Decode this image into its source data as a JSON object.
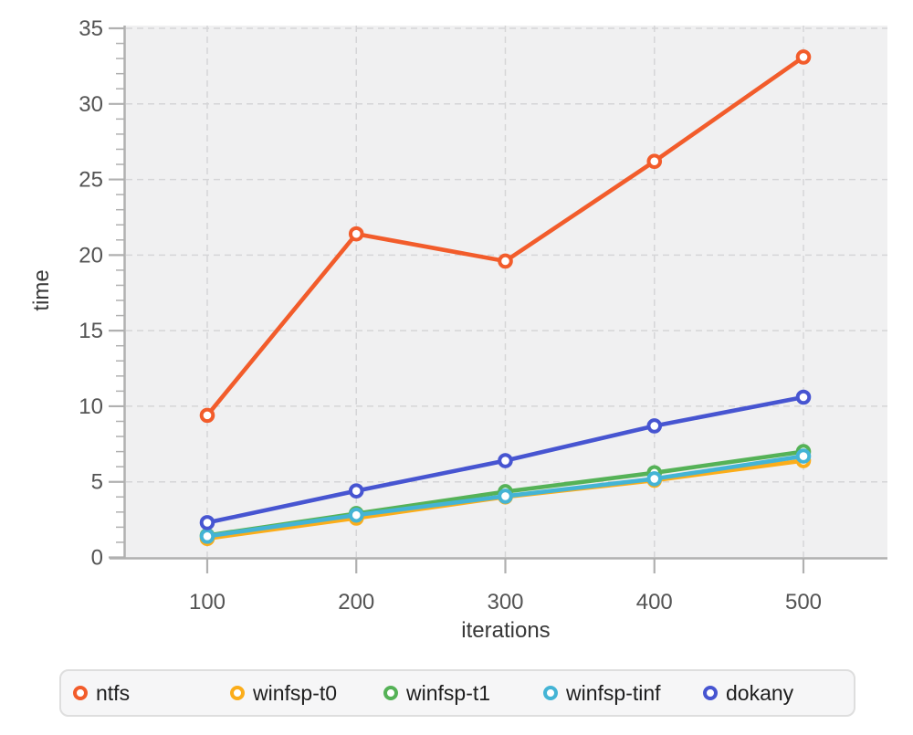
{
  "chart_data": {
    "type": "line",
    "title": "",
    "xlabel": "iterations",
    "ylabel": "time",
    "x": [
      100,
      200,
      300,
      400,
      500
    ],
    "xticks": [
      100,
      200,
      300,
      400,
      500
    ],
    "yticks_major": [
      0,
      5,
      10,
      15,
      20,
      25,
      30,
      35
    ],
    "ylim": [
      0,
      35
    ],
    "grid": true,
    "legend_position": "bottom",
    "series": [
      {
        "name": "ntfs",
        "color": "#f25c2b",
        "values": [
          9.4,
          21.4,
          19.6,
          26.2,
          33.1
        ]
      },
      {
        "name": "winfsp-t0",
        "color": "#fbad1a",
        "values": [
          1.25,
          2.6,
          4.0,
          5.1,
          6.4
        ]
      },
      {
        "name": "winfsp-t1",
        "color": "#55b257",
        "values": [
          1.45,
          2.9,
          4.35,
          5.6,
          7.0
        ]
      },
      {
        "name": "winfsp-tinf",
        "color": "#44b4d5",
        "values": [
          1.4,
          2.8,
          4.05,
          5.2,
          6.7
        ]
      },
      {
        "name": "dokany",
        "color": "#4755d1",
        "values": [
          2.3,
          4.4,
          6.4,
          8.7,
          10.6
        ]
      }
    ]
  },
  "chart_style": {
    "plot_bg": "#f0f0f1",
    "grid_color": "#d5d5d7",
    "axis_color": "#b0b0b0",
    "tick_label_color": "#545454",
    "axis_title_color": "#383838",
    "marker_fill": "#ffffff",
    "legend_bg": "#f6f6f7",
    "legend_border": "#dedede"
  }
}
